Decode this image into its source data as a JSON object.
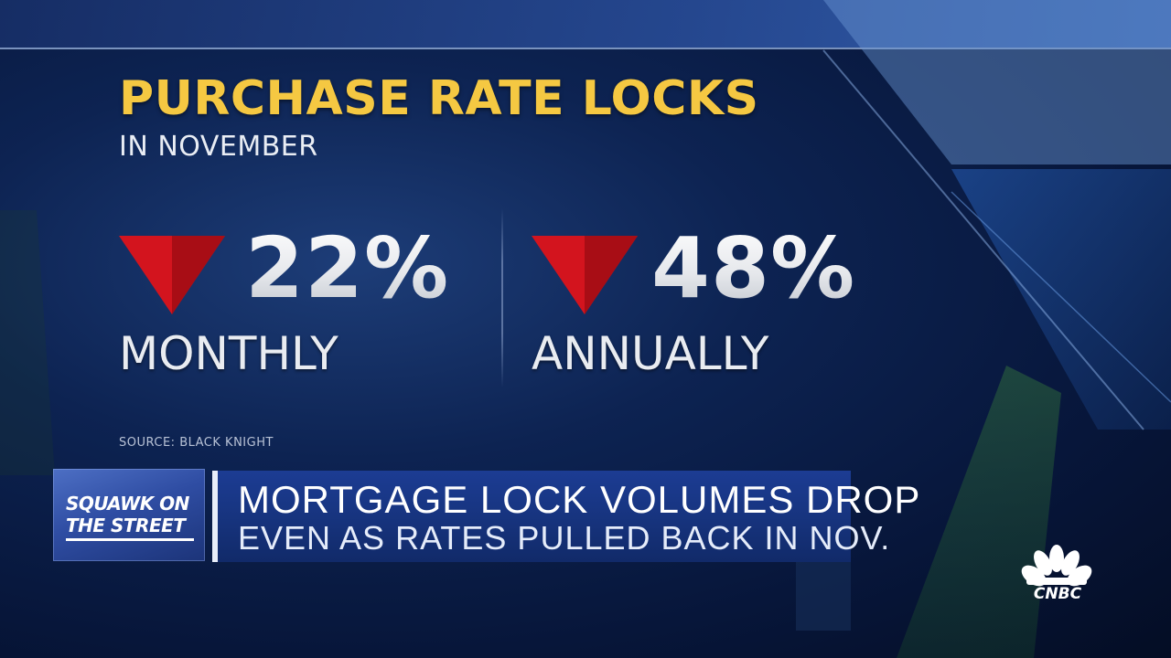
{
  "graphic": {
    "headline": "PURCHASE RATE LOCKS",
    "subhead": "IN NOVEMBER",
    "stats": [
      {
        "value": "22%",
        "label": "MONTHLY",
        "direction": "down-arrow-icon"
      },
      {
        "value": "48%",
        "label": "ANNUALLY",
        "direction": "down-arrow-icon"
      }
    ],
    "source": "SOURCE: BLACK KNIGHT"
  },
  "lower_third": {
    "show_logo_line1": "SQUAWK ON",
    "show_logo_line2": "THE STREET",
    "title": "MORTGAGE LOCK VOLUMES DROP",
    "subtitle": "EVEN AS RATES PULLED BACK IN NOV."
  },
  "network": {
    "name": "CNBC",
    "icon": "peacock-icon"
  },
  "colors": {
    "headline": "#f5c842",
    "arrow": "#d3141e",
    "chyron": "#17347f",
    "background": "#0d2352"
  }
}
